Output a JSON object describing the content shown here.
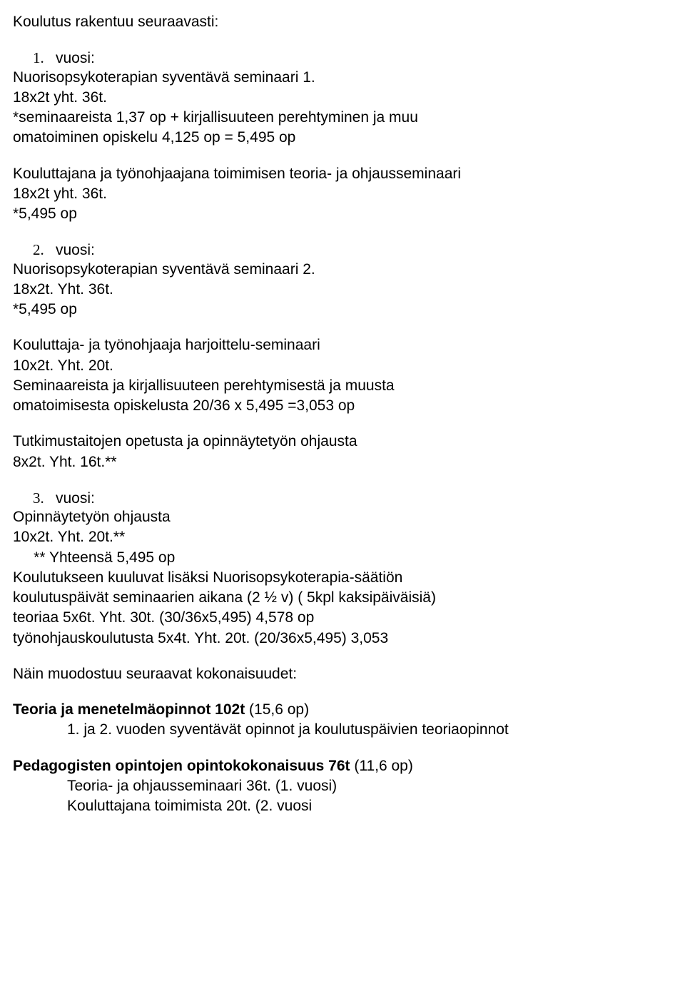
{
  "title": "Koulutus rakentuu seuraavasti:",
  "y1": {
    "num": "1.",
    "label": "vuosi:",
    "lines": [
      "Nuorisopsykoterapian syventävä seminaari 1.",
      "18x2t yht. 36t.",
      "*seminaareista 1,37 op + kirjallisuuteen perehtyminen ja muu",
      "omatoiminen opiskelu 4,125 op = 5,495 op"
    ],
    "sub": [
      "Kouluttajana ja työnohjaajana toimimisen teoria- ja ohjausseminaari",
      "18x2t yht. 36t.",
      "*5,495 op"
    ]
  },
  "y2": {
    "num": "2.",
    "label": "vuosi:",
    "lines": [
      "Nuorisopsykoterapian syventävä seminaari 2.",
      "18x2t. Yht. 36t.",
      " *5,495 op"
    ],
    "sub1": [
      "Kouluttaja- ja työnohjaaja harjoittelu-seminaari",
      "10x2t. Yht. 20t.",
      " Seminaareista ja kirjallisuuteen perehtymisestä ja muusta",
      " omatoimisesta opiskelusta 20/36 x 5,495 =3,053 op"
    ],
    "sub2": [
      "Tutkimustaitojen opetusta ja opinnäytetyön ohjausta",
      "8x2t. Yht. 16t.**"
    ]
  },
  "y3": {
    "num": "3.",
    "label": "vuosi:",
    "lines": [
      "Opinnäytetyön ohjausta",
      "10x2t. Yht. 20t.**",
      "     ** Yhteensä 5,495 op",
      "Koulutukseen kuuluvat lisäksi Nuorisopsykoterapia-säätiön",
      "koulutuspäivät seminaarien aikana (2 ½ v) ( 5kpl kaksipäiväisiä)",
      "teoriaa 5x6t. Yht. 30t. (30/36x5,495) 4,578 op",
      "työnohjauskoulutusta 5x4t. Yht. 20t. (20/36x5,495) 3,053"
    ]
  },
  "after": "Näin muodostuu seuraavat kokonaisuudet:",
  "teoria": {
    "bold": "Teoria ja menetelmäopinnot 102t",
    "rest": " (15,6 op)",
    "line": "1. ja 2. vuoden syventävät opinnot ja koulutuspäivien teoriaopinnot"
  },
  "pedag": {
    "bold": "Pedagogisten opintojen opintokokonaisuus 76t",
    "rest": " (11,6 op)",
    "lines": [
      "Teoria- ja ohjausseminaari  36t. (1. vuosi)",
      "Kouluttajana toimimista 20t. (2. vuosi"
    ]
  }
}
